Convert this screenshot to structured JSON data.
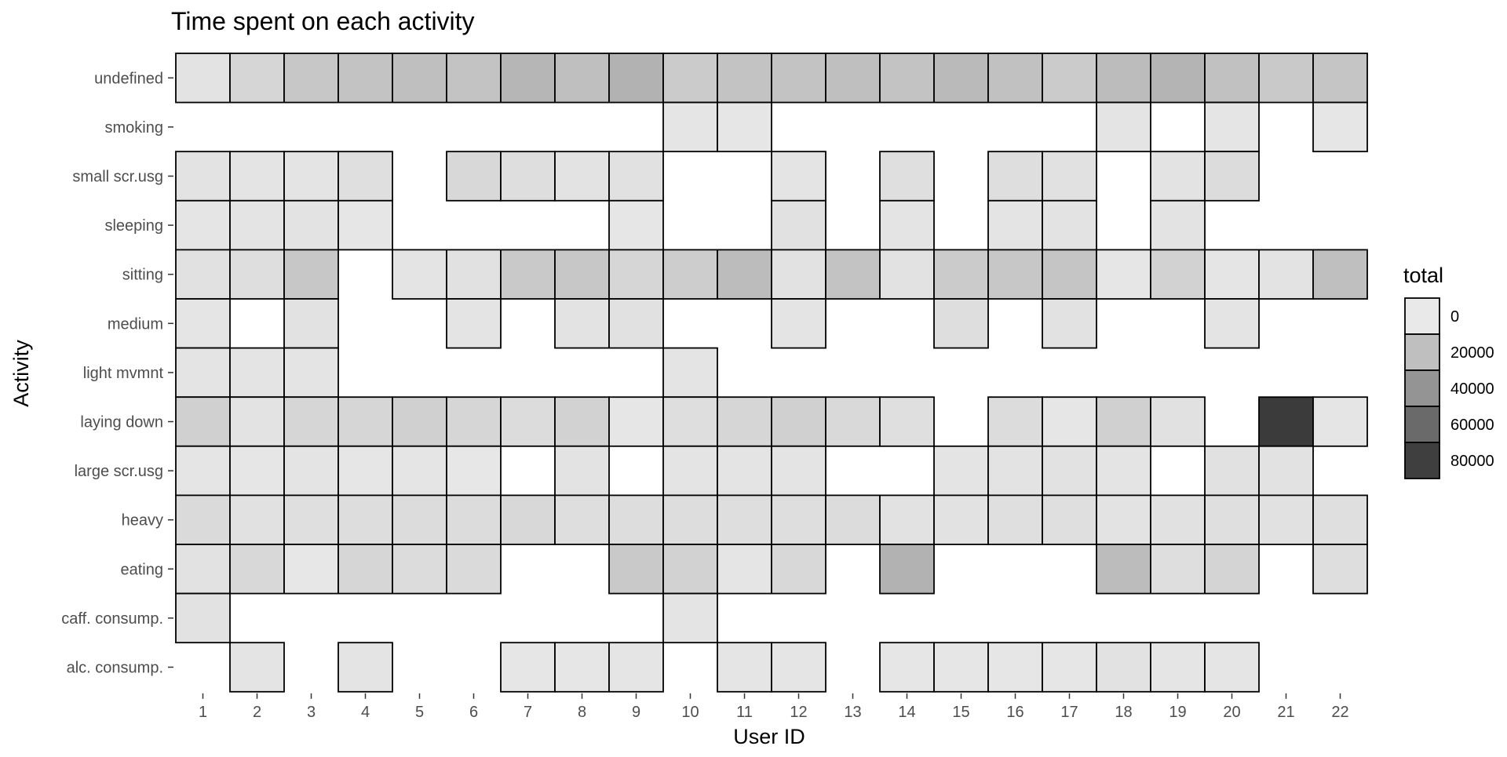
{
  "chart_data": {
    "type": "heatmap",
    "title": "Time spent on each activity",
    "xlabel": "User ID",
    "ylabel": "Activity",
    "x_categories": [
      "1",
      "2",
      "3",
      "4",
      "5",
      "6",
      "7",
      "8",
      "9",
      "10",
      "11",
      "12",
      "13",
      "14",
      "15",
      "16",
      "17",
      "18",
      "19",
      "20",
      "21",
      "22"
    ],
    "y_categories_top_to_bottom": [
      "undefined",
      "smoking",
      "small scr.usg",
      "sleeping",
      "sitting",
      "medium",
      "light mvmnt",
      "laying down",
      "large scr.usg",
      "heavy",
      "eating",
      "caff. consump.",
      "alc. consump."
    ],
    "legend": {
      "title": "total",
      "labels": [
        "0",
        "20000",
        "40000",
        "60000",
        "80000"
      ],
      "values": [
        0,
        20000,
        40000,
        60000,
        80000
      ],
      "position": "right"
    },
    "color_scale": {
      "low": "#e9e9e9",
      "high": "#2a2a2a",
      "domain": [
        0,
        90000
      ]
    },
    "grid": false,
    "note_values": "approximate, estimated from fill shade; null = no tile",
    "values": {
      "undefined": [
        3000,
        9000,
        16000,
        18000,
        20000,
        18000,
        24000,
        20000,
        26000,
        14000,
        18000,
        18000,
        20000,
        18000,
        22000,
        19000,
        14000,
        21000,
        25000,
        19000,
        15000,
        17000
      ],
      "smoking": [
        null,
        null,
        null,
        null,
        null,
        null,
        null,
        null,
        null,
        2000,
        1500,
        null,
        null,
        null,
        null,
        null,
        null,
        2500,
        null,
        2000,
        null,
        1500
      ],
      "small scr.usg": [
        3000,
        2500,
        2500,
        4500,
        null,
        8000,
        5000,
        3000,
        4000,
        null,
        null,
        2500,
        null,
        4500,
        null,
        5000,
        4000,
        null,
        3000,
        6000,
        null,
        null
      ],
      "sleeping": [
        2000,
        2500,
        3000,
        1500,
        null,
        null,
        null,
        null,
        1500,
        null,
        null,
        4000,
        null,
        2500,
        null,
        2500,
        3000,
        null,
        3000,
        null,
        null,
        null
      ],
      "sitting": [
        4000,
        5000,
        16000,
        null,
        2500,
        4000,
        15000,
        16000,
        9000,
        13000,
        21000,
        3500,
        18000,
        3500,
        14000,
        16000,
        17000,
        1500,
        11000,
        2000,
        3000,
        20000
      ],
      "medium": [
        2000,
        null,
        3500,
        null,
        null,
        2500,
        null,
        3000,
        4000,
        null,
        null,
        2500,
        null,
        null,
        5000,
        null,
        3500,
        null,
        null,
        2500,
        null,
        null
      ],
      "light mvmnt": [
        2500,
        2500,
        2500,
        null,
        null,
        null,
        null,
        null,
        null,
        2500,
        null,
        null,
        null,
        null,
        null,
        null,
        null,
        null,
        null,
        null,
        null,
        null
      ],
      "laying down": [
        12000,
        3000,
        9000,
        9000,
        12000,
        9000,
        6000,
        11000,
        1500,
        5000,
        9000,
        12000,
        7500,
        4500,
        null,
        6000,
        1500,
        12000,
        4000,
        null,
        82000,
        2000
      ],
      "large scr.usg": [
        2000,
        1500,
        2500,
        1500,
        2000,
        1000,
        null,
        3000,
        null,
        2500,
        2500,
        2500,
        null,
        null,
        2500,
        3000,
        3500,
        2500,
        null,
        4000,
        3500,
        null
      ],
      "heavy": [
        7000,
        4000,
        4500,
        5500,
        6000,
        6000,
        8000,
        5000,
        5500,
        5500,
        5000,
        5000,
        6000,
        3500,
        3500,
        4500,
        4500,
        3000,
        4000,
        4500,
        4000,
        4500
      ],
      "eating": [
        3500,
        8000,
        1000,
        9000,
        6000,
        7000,
        null,
        null,
        15000,
        11000,
        2000,
        8000,
        null,
        26000,
        null,
        null,
        null,
        21000,
        5000,
        10000,
        null,
        5000
      ],
      "caff. consump.": [
        3500,
        null,
        null,
        null,
        null,
        null,
        null,
        null,
        null,
        2500,
        null,
        null,
        null,
        null,
        null,
        null,
        null,
        null,
        null,
        null,
        null,
        null
      ],
      "alc. consump.": [
        null,
        2500,
        null,
        2500,
        null,
        null,
        1500,
        1500,
        2000,
        null,
        2000,
        2000,
        null,
        1500,
        1500,
        1500,
        1500,
        3500,
        2000,
        2000,
        null,
        null
      ]
    }
  }
}
